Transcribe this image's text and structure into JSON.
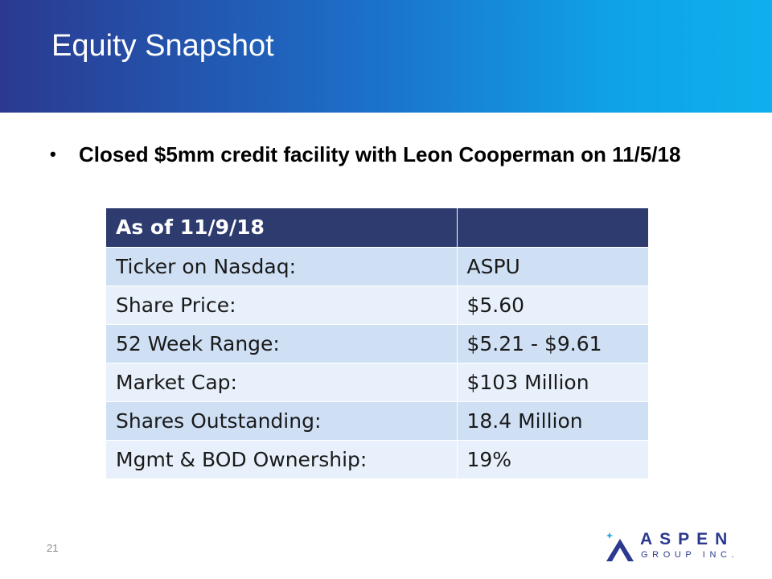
{
  "slide": {
    "title": "Equity Snapshot",
    "bullet_symbol": "•",
    "bullet": "Closed $5mm credit facility with Leon Cooperman on 11/5/18",
    "page_number": "21"
  },
  "table": {
    "header": [
      "As of 11/9/18",
      ""
    ],
    "rows": [
      [
        "Ticker on Nasdaq:",
        "ASPU"
      ],
      [
        "Share Price:",
        "$5.60"
      ],
      [
        "52 Week Range:",
        "$5.21 - $9.61"
      ],
      [
        "Market Cap:",
        "$103 Million"
      ],
      [
        "Shares Outstanding:",
        "18.4 Million"
      ],
      [
        "Mgmt & BOD Ownership:",
        "19%"
      ]
    ]
  },
  "logo": {
    "name": "ASPEN",
    "subtitle": "GROUP INC.",
    "icon": "aspen-mountain-icon"
  },
  "colors": {
    "header_gradient_start": "#2b3990",
    "header_gradient_end": "#0db0ec",
    "table_header": "#2e3b6e",
    "table_row_dark": "#cfe0f5",
    "table_row_light": "#e8f1fb",
    "logo_navy": "#2b3990",
    "logo_accent": "#29abe2"
  }
}
